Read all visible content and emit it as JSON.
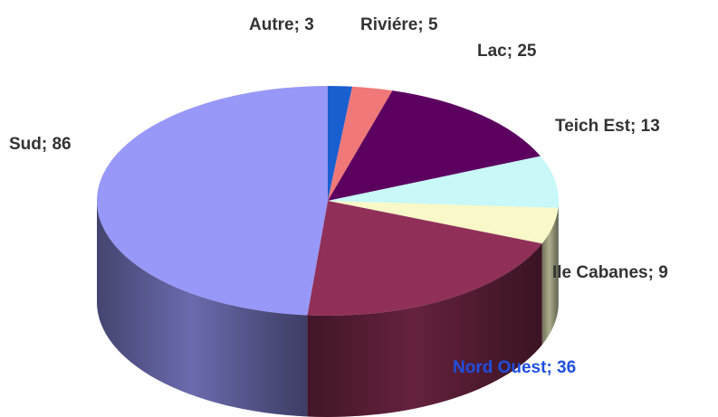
{
  "chart_data": {
    "type": "pie3d",
    "values": [
      3,
      5,
      25,
      13,
      9,
      36,
      86
    ],
    "value_labels": [
      "Autre; 3",
      "Riviére; 5",
      "Lac; 25",
      "Teich Est; 13",
      "Ile Cabanes; 9",
      "Nord Ouest; 36",
      "Sud; 86"
    ],
    "colors": [
      "#1a5fd0",
      "#f07878",
      "#5c0060",
      "#c8f8f8",
      "#f8f8c8",
      "#903058",
      "#9898f8"
    ],
    "label_colors": [
      "#333333",
      "#333333",
      "#333333",
      "#333333",
      "#333333",
      "#1f4fe0",
      "#333333"
    ]
  }
}
